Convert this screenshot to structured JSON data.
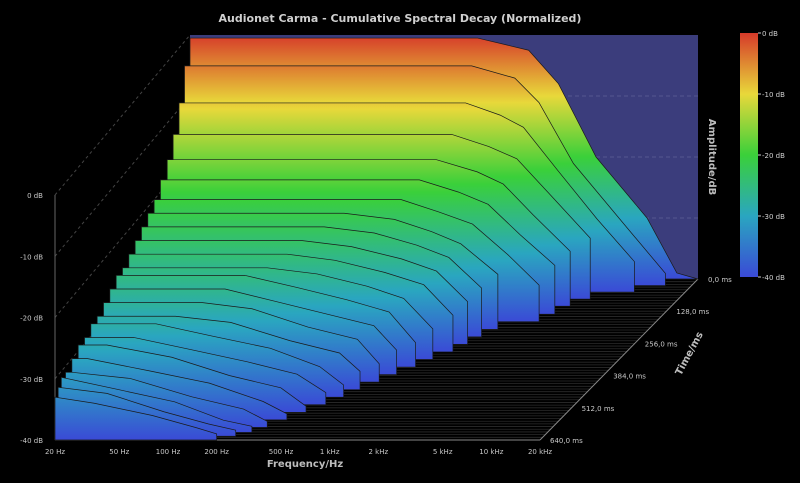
{
  "chart_data": {
    "type": "area",
    "title": "Audionet Carma - Cumulative Spectral Decay (Normalized)",
    "xlabel": "Frequency/Hz",
    "ylabel": "Amplitude/dB",
    "zlabel": "Time/ms",
    "x_scale": "log",
    "x_ticks": [
      "20 Hz",
      "50 Hz",
      "100 Hz",
      "200 Hz",
      "500 Hz",
      "1 kHz",
      "2 kHz",
      "5 kHz",
      "10 kHz",
      "20 kHz"
    ],
    "x_tick_values": [
      20,
      50,
      100,
      200,
      500,
      1000,
      2000,
      5000,
      10000,
      20000
    ],
    "y_ticks": [
      "0 dB",
      "-10 dB",
      "-20 dB",
      "-30 dB",
      "-40 dB"
    ],
    "y_tick_values": [
      0,
      -10,
      -20,
      -30,
      -40
    ],
    "ylim": [
      -40,
      0
    ],
    "z_ticks": [
      "0,0 ms",
      "128,0 ms",
      "256,0 ms",
      "384,0 ms",
      "512,0 ms",
      "640,0 ms"
    ],
    "z_tick_values": [
      0,
      128,
      256,
      384,
      512,
      640
    ],
    "zlim": [
      0,
      640
    ],
    "colorbar": {
      "labels": [
        "0 dB",
        "-10 dB",
        "-20 dB",
        "-30 dB",
        "-40 dB"
      ],
      "colors": [
        "#d63a2a",
        "#e8d83a",
        "#3ad03a",
        "#2aa6c0",
        "#3a4ad6"
      ]
    },
    "slice_count": 24,
    "series": [
      {
        "name": "",
        "time_ms": 0,
        "points": [
          [
            600,
            -0.5
          ],
          [
            1000,
            -0.5
          ],
          [
            2000,
            -2.5
          ],
          [
            3000,
            -8
          ],
          [
            5000,
            -20
          ],
          [
            10000,
            -30
          ],
          [
            15000,
            -39
          ],
          [
            20000,
            -40
          ]
        ]
      },
      {
        "name": "",
        "time_ms": 26,
        "points": [
          [
            600,
            -4
          ],
          [
            1000,
            -4
          ],
          [
            1800,
            -6
          ],
          [
            2500,
            -10
          ],
          [
            4000,
            -20
          ],
          [
            8000,
            -30
          ],
          [
            14000,
            -38
          ]
        ]
      },
      {
        "name": "",
        "time_ms": 52,
        "points": [
          [
            600,
            -9
          ],
          [
            1000,
            -9
          ],
          [
            1600,
            -11
          ],
          [
            2200,
            -13
          ],
          [
            3500,
            -20
          ],
          [
            6000,
            -28
          ],
          [
            10000,
            -35
          ]
        ]
      },
      {
        "name": "",
        "time_ms": 80,
        "points": [
          [
            500,
            -13
          ],
          [
            900,
            -13
          ],
          [
            1500,
            -15
          ],
          [
            2200,
            -17
          ],
          [
            3500,
            -23
          ],
          [
            6000,
            -30
          ]
        ]
      },
      {
        "name": "",
        "time_ms": 108,
        "points": [
          [
            400,
            -16
          ],
          [
            800,
            -16
          ],
          [
            1400,
            -18
          ],
          [
            2000,
            -20
          ],
          [
            3000,
            -25
          ],
          [
            5000,
            -31
          ]
        ]
      },
      {
        "name": "",
        "time_ms": 140,
        "points": [
          [
            400,
            -18
          ],
          [
            700,
            -18
          ],
          [
            1200,
            -20
          ],
          [
            1800,
            -22
          ],
          [
            2800,
            -27
          ],
          [
            4500,
            -32
          ]
        ]
      },
      {
        "name": "",
        "time_ms": 170,
        "points": [
          [
            300,
            -20
          ],
          [
            600,
            -20
          ],
          [
            1000,
            -22
          ],
          [
            1600,
            -24
          ],
          [
            2600,
            -29
          ],
          [
            4000,
            -34
          ]
        ]
      },
      {
        "name": "",
        "time_ms": 200,
        "points": [
          [
            300,
            -21
          ],
          [
            600,
            -22
          ],
          [
            1000,
            -24
          ],
          [
            1500,
            -26
          ],
          [
            2500,
            -31
          ]
        ]
      },
      {
        "name": "",
        "time_ms": 230,
        "points": [
          [
            250,
            -22
          ],
          [
            500,
            -23
          ],
          [
            900,
            -25
          ],
          [
            1400,
            -27
          ],
          [
            2200,
            -32
          ]
        ]
      },
      {
        "name": "",
        "time_ms": 260,
        "points": [
          [
            200,
            -23
          ],
          [
            400,
            -24
          ],
          [
            800,
            -26
          ],
          [
            1300,
            -28
          ],
          [
            2000,
            -33
          ]
        ]
      },
      {
        "name": "",
        "time_ms": 290,
        "points": [
          [
            180,
            -24
          ],
          [
            350,
            -25
          ],
          [
            700,
            -27
          ],
          [
            1200,
            -29
          ],
          [
            1800,
            -34
          ]
        ]
      },
      {
        "name": "",
        "time_ms": 320,
        "points": [
          [
            150,
            -25
          ],
          [
            300,
            -26
          ],
          [
            600,
            -28
          ],
          [
            1000,
            -30
          ],
          [
            1500,
            -35
          ]
        ]
      },
      {
        "name": "",
        "time_ms": 350,
        "points": [
          [
            120,
            -25
          ],
          [
            250,
            -27
          ],
          [
            500,
            -29
          ],
          [
            900,
            -31
          ],
          [
            1300,
            -36
          ]
        ]
      },
      {
        "name": "",
        "time_ms": 380,
        "points": [
          [
            100,
            -26
          ],
          [
            200,
            -28
          ],
          [
            400,
            -30
          ],
          [
            800,
            -32
          ],
          [
            1100,
            -36
          ]
        ]
      },
      {
        "name": "",
        "time_ms": 410,
        "points": [
          [
            80,
            -27
          ],
          [
            160,
            -28
          ],
          [
            350,
            -31
          ],
          [
            700,
            -33
          ],
          [
            950,
            -37
          ]
        ]
      },
      {
        "name": "",
        "time_ms": 440,
        "points": [
          [
            60,
            -28
          ],
          [
            130,
            -29
          ],
          [
            300,
            -32
          ],
          [
            600,
            -34
          ],
          [
            800,
            -37
          ]
        ]
      },
      {
        "name": "",
        "time_ms": 470,
        "points": [
          [
            50,
            -28
          ],
          [
            110,
            -30
          ],
          [
            250,
            -32
          ],
          [
            500,
            -35
          ],
          [
            700,
            -38
          ]
        ]
      },
      {
        "name": "",
        "time_ms": 500,
        "points": [
          [
            40,
            -29
          ],
          [
            90,
            -31
          ],
          [
            200,
            -33
          ],
          [
            400,
            -35
          ],
          [
            600,
            -38
          ]
        ]
      },
      {
        "name": "",
        "time_ms": 530,
        "points": [
          [
            30,
            -29
          ],
          [
            75,
            -31
          ],
          [
            170,
            -34
          ],
          [
            350,
            -36
          ],
          [
            500,
            -39
          ]
        ]
      },
      {
        "name": "",
        "time_ms": 560,
        "points": [
          [
            25,
            -30
          ],
          [
            60,
            -32
          ],
          [
            140,
            -34
          ],
          [
            300,
            -37
          ],
          [
            420,
            -39
          ]
        ]
      },
      {
        "name": "",
        "time_ms": 590,
        "points": [
          [
            22,
            -31
          ],
          [
            50,
            -32
          ],
          [
            120,
            -35
          ],
          [
            250,
            -37
          ],
          [
            350,
            -39
          ]
        ]
      },
      {
        "name": "",
        "time_ms": 610,
        "points": [
          [
            20,
            -31
          ],
          [
            45,
            -33
          ],
          [
            100,
            -35
          ],
          [
            200,
            -38
          ],
          [
            300,
            -39
          ]
        ]
      },
      {
        "name": "",
        "time_ms": 625,
        "points": [
          [
            20,
            -32
          ],
          [
            40,
            -33
          ],
          [
            90,
            -36
          ],
          [
            170,
            -38
          ],
          [
            250,
            -39
          ]
        ]
      },
      {
        "name": "",
        "time_ms": 640,
        "points": [
          [
            20,
            -33
          ],
          [
            35,
            -34
          ],
          [
            80,
            -36
          ],
          [
            150,
            -38
          ],
          [
            200,
            -39
          ]
        ]
      }
    ]
  }
}
